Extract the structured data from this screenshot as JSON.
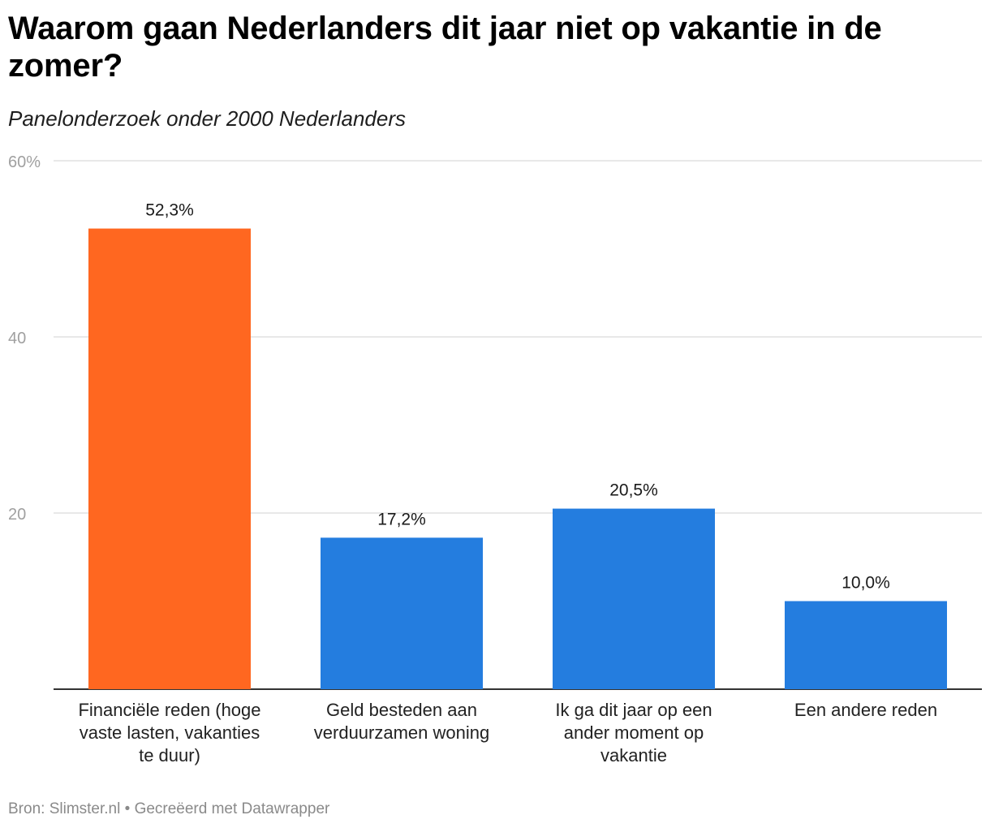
{
  "title": "Waarom gaan Nederlanders dit jaar niet op vakantie in de zomer?",
  "subtitle": "Panelonderzoek onder 2000 Nederlanders",
  "footer": {
    "source_label": "Bron:",
    "source": "Slimster.nl",
    "separator": "•",
    "credit": "Gecreëerd met Datawrapper"
  },
  "chart_data": {
    "type": "bar",
    "categories": [
      "Financiële reden (hoge vaste lasten, vakanties te duur)",
      "Geld besteden aan verduurzamen woning",
      "Ik ga dit jaar op een ander moment op vakantie",
      "Een andere reden"
    ],
    "category_lines": [
      [
        "Financiële reden (hoge",
        "vaste lasten, vakanties",
        "te duur)"
      ],
      [
        "Geld besteden aan",
        "verduurzamen woning"
      ],
      [
        "Ik ga dit jaar op een",
        "ander moment op",
        "vakantie"
      ],
      [
        "Een andere reden"
      ]
    ],
    "values": [
      52.3,
      17.2,
      20.5,
      10.0
    ],
    "value_labels": [
      "52,3%",
      "17,2%",
      "20,5%",
      "10,0%"
    ],
    "ylim": [
      0,
      60
    ],
    "yticks": [
      20,
      40,
      60
    ],
    "ytick_labels": [
      "20",
      "40",
      "60%"
    ],
    "grid": true,
    "colors": [
      "#ff6720",
      "#247ddf",
      "#247ddf",
      "#247ddf"
    ]
  }
}
